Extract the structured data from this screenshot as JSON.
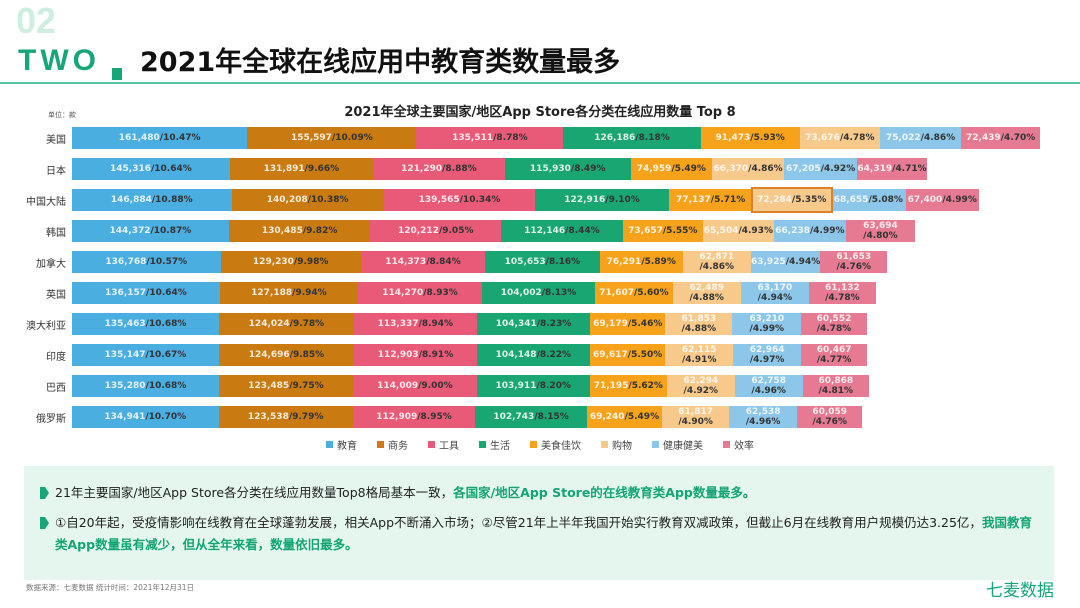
{
  "header": {
    "section_bg": "02",
    "section_label": "TWO",
    "title": "2021年全球在线应用中教育类数量最多"
  },
  "unit": "单位：款",
  "chart_data": {
    "type": "bar",
    "orientation": "horizontal",
    "stacked": true,
    "title": "2021年全球主要国家/地区App Store各分类在线应用数量 Top 8",
    "categories": [
      "美国",
      "日本",
      "中国大陆",
      "韩国",
      "加拿大",
      "英国",
      "澳大利亚",
      "印度",
      "巴西",
      "俄罗斯"
    ],
    "series": [
      {
        "name": "教育",
        "color": "#4aaee0",
        "values": [
          161480,
          145316,
          146884,
          144372,
          136768,
          136157,
          135463,
          135147,
          135280,
          134941
        ],
        "pcts": [
          "10.47%",
          "10.64%",
          "10.88%",
          "10.87%",
          "10.57%",
          "10.64%",
          "10.68%",
          "10.67%",
          "10.68%",
          "10.70%"
        ]
      },
      {
        "name": "商务",
        "color": "#c97a10",
        "values": [
          155597,
          131891,
          140208,
          130485,
          129230,
          127188,
          124024,
          124696,
          123485,
          123538
        ],
        "pcts": [
          "10.09%",
          "9.66%",
          "10.38%",
          "9.82%",
          "9.98%",
          "9.94%",
          "9.78%",
          "9.85%",
          "9.75%",
          "9.79%"
        ]
      },
      {
        "name": "工具",
        "color": "#e85a78",
        "values": [
          135511,
          121290,
          139565,
          120212,
          114373,
          114270,
          113337,
          112903,
          114009,
          112909
        ],
        "pcts": [
          "8.78%",
          "8.88%",
          "10.34%",
          "9.05%",
          "8.84%",
          "8.93%",
          "8.94%",
          "8.91%",
          "9.00%",
          "8.95%"
        ]
      },
      {
        "name": "生活",
        "color": "#1aa673",
        "values": [
          126186,
          115930,
          122916,
          112146,
          105653,
          104002,
          104341,
          104148,
          103911,
          102743
        ],
        "pcts": [
          "8.18%",
          "8.49%",
          "9.10%",
          "8.44%",
          "8.16%",
          "8.13%",
          "8.23%",
          "8.22%",
          "8.20%",
          "8.15%"
        ]
      },
      {
        "name": "美食佳饮",
        "color": "#f7a21b",
        "values": [
          91473,
          74959,
          77137,
          73657,
          76291,
          71607,
          69179,
          69617,
          71195,
          69240
        ],
        "pcts": [
          "5.93%",
          "5.49%",
          "5.71%",
          "5.55%",
          "5.89%",
          "5.60%",
          "5.46%",
          "5.50%",
          "5.62%",
          "5.49%"
        ]
      },
      {
        "name": "购物",
        "color": "#f7c98a",
        "values": [
          73676,
          66370,
          72284,
          65504,
          62871,
          62489,
          61853,
          62115,
          62294,
          61817
        ],
        "pcts": [
          "4.78%",
          "4.86%",
          "5.35%",
          "4.93%",
          "4.86%",
          "4.88%",
          "4.88%",
          "4.91%",
          "4.92%",
          "4.90%"
        ]
      },
      {
        "name": "健康健美",
        "color": "#8cc7ea",
        "values": [
          75022,
          67205,
          68655,
          66238,
          63925,
          63170,
          63210,
          62964,
          62758,
          62538
        ],
        "pcts": [
          "4.86%",
          "4.92%",
          "5.08%",
          "4.99%",
          "4.94%",
          "4.94%",
          "4.99%",
          "4.97%",
          "4.96%",
          "4.96%"
        ]
      },
      {
        "name": "效率",
        "color": "#e57a92",
        "values": [
          72439,
          64319,
          67400,
          63694,
          61653,
          61132,
          60552,
          60467,
          60868,
          60059
        ],
        "pcts": [
          "4.70%",
          "4.71%",
          "4.99%",
          "4.80%",
          "4.76%",
          "4.78%",
          "4.78%",
          "4.77%",
          "4.81%",
          "4.76%"
        ]
      }
    ],
    "order_shown": [
      "教育",
      "商务",
      "工具",
      "生活",
      "美食佳饮",
      "购物",
      "健康健美",
      "效率"
    ],
    "highlight": {
      "category": "中国大陆",
      "series": "购物"
    },
    "legend": "bottom"
  },
  "summary": {
    "p1_a": "21年主要国家/地区App Store各分类在线应用数量Top8格局基本一致，",
    "p1_b": "各国家/地区App Store的在线教育类App数量最多。",
    "p2_a": "①自20年起，受疫情影响在线教育在全球蓬勃发展，相关App不断涌入市场；②尽管21年上半年我国开始实行教育双减政策，但截止6月在线教育用户规模仍达3.25亿，",
    "p2_b": "我国教育类App数量虽有减少，但从全年来看，数量依旧最多。"
  },
  "footer": {
    "source": "数据来源：七麦数据  统计时间：2021年12月31日",
    "brand": "七麦数据"
  }
}
